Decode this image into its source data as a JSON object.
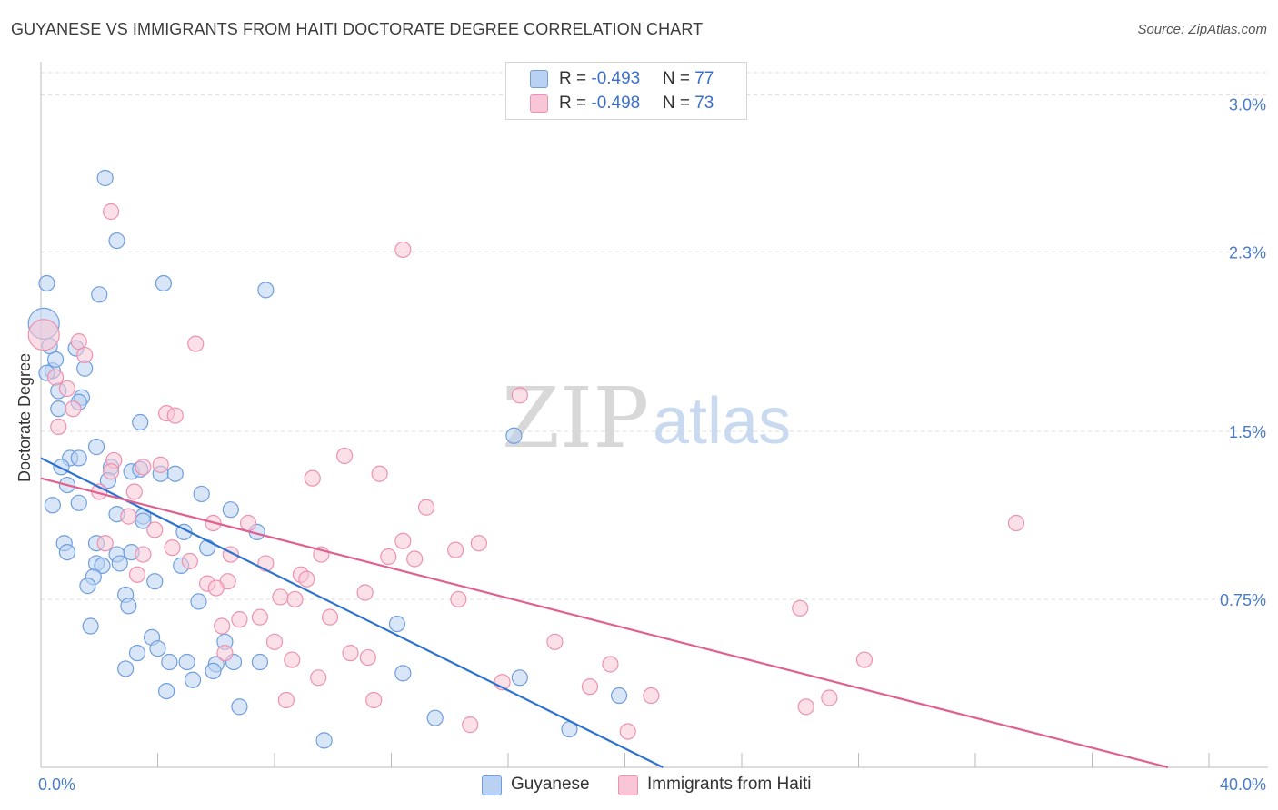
{
  "title": "GUYANESE VS IMMIGRANTS FROM HAITI DOCTORATE DEGREE CORRELATION CHART",
  "source": "Source: ZipAtlas.com",
  "watermark": {
    "zip": "ZIP",
    "atlas": "atlas"
  },
  "stats": [
    {
      "r_label": "R = ",
      "r_value": "-0.493",
      "n_label": "N = ",
      "n_value": "77"
    },
    {
      "r_label": "R = ",
      "r_value": "-0.498",
      "n_label": "N = ",
      "n_value": "73"
    }
  ],
  "legend": [
    "Guyanese",
    "Immigrants from Haiti"
  ],
  "colors": {
    "blue_fill": "#b9d2f3",
    "blue_stroke": "#6f9ede",
    "blue_line": "#2e73d0",
    "pink_fill": "#f8c6d6",
    "pink_stroke": "#ec92b0",
    "pink_line": "#e0608f",
    "tick_text": "#4a7cc9",
    "grid": "#dddddd"
  },
  "chart_data": {
    "type": "scatter",
    "title": "GUYANESE VS IMMIGRANTS FROM HAITI DOCTORATE DEGREE CORRELATION CHART",
    "xlabel": "",
    "ylabel": "Doctorate Degree",
    "xlim": [
      0,
      40
    ],
    "ylim": [
      0,
      3.1
    ],
    "x_tick_labels": [
      {
        "value": 0,
        "label": "0.0%"
      },
      {
        "value": 40,
        "label": "40.0%"
      }
    ],
    "y_ticks": [
      {
        "value": 0.75,
        "label": "0.75%"
      },
      {
        "value": 1.5,
        "label": "1.5%"
      },
      {
        "value": 2.3,
        "label": "2.3%"
      },
      {
        "value": 3.0,
        "label": "3.0%"
      }
    ],
    "grid": true,
    "series": [
      {
        "name": "Guyanese",
        "color": "blue",
        "r": -0.493,
        "n": 77,
        "trend": [
          [
            0,
            1.38
          ],
          [
            21.3,
            0.0
          ]
        ],
        "points": [
          [
            0.1,
            1.98,
            "large"
          ],
          [
            0.2,
            2.16
          ],
          [
            0.4,
            1.77
          ],
          [
            0.5,
            1.82
          ],
          [
            0.3,
            1.88
          ],
          [
            0.6,
            1.68
          ],
          [
            1.2,
            1.87
          ],
          [
            1.5,
            1.78
          ],
          [
            1.4,
            1.65
          ],
          [
            1.3,
            1.63
          ],
          [
            0.6,
            1.6
          ],
          [
            2.2,
            2.63
          ],
          [
            2.6,
            2.35
          ],
          [
            2.0,
            2.11
          ],
          [
            4.2,
            2.16
          ],
          [
            7.7,
            2.13
          ],
          [
            3.4,
            1.54
          ],
          [
            16.2,
            1.48
          ],
          [
            1.9,
            1.43
          ],
          [
            1.0,
            1.38
          ],
          [
            1.3,
            1.38
          ],
          [
            2.4,
            1.34
          ],
          [
            0.7,
            1.34
          ],
          [
            3.1,
            1.32
          ],
          [
            3.4,
            1.33
          ],
          [
            4.1,
            1.31
          ],
          [
            4.6,
            1.31
          ],
          [
            2.3,
            1.28
          ],
          [
            0.9,
            1.26
          ],
          [
            0.4,
            1.17
          ],
          [
            1.3,
            1.18
          ],
          [
            5.5,
            1.22
          ],
          [
            2.6,
            1.13
          ],
          [
            3.5,
            1.12
          ],
          [
            3.5,
            1.1
          ],
          [
            6.5,
            1.15
          ],
          [
            0.8,
            1.0
          ],
          [
            1.9,
            1.0
          ],
          [
            4.9,
            1.05
          ],
          [
            7.4,
            1.05
          ],
          [
            5.7,
            0.98
          ],
          [
            0.9,
            0.96
          ],
          [
            2.6,
            0.95
          ],
          [
            3.1,
            0.96
          ],
          [
            1.9,
            0.91
          ],
          [
            2.1,
            0.9
          ],
          [
            2.7,
            0.91
          ],
          [
            4.8,
            0.9
          ],
          [
            1.8,
            0.85
          ],
          [
            3.9,
            0.83
          ],
          [
            1.6,
            0.81
          ],
          [
            2.9,
            0.77
          ],
          [
            3.0,
            0.72
          ],
          [
            5.4,
            0.74
          ],
          [
            1.7,
            0.63
          ],
          [
            3.8,
            0.58
          ],
          [
            6.3,
            0.56
          ],
          [
            4.0,
            0.53
          ],
          [
            3.3,
            0.51
          ],
          [
            12.2,
            0.64
          ],
          [
            4.4,
            0.47
          ],
          [
            5.0,
            0.47
          ],
          [
            6.0,
            0.46
          ],
          [
            7.5,
            0.47
          ],
          [
            2.9,
            0.44
          ],
          [
            6.6,
            0.47
          ],
          [
            5.9,
            0.43
          ],
          [
            12.4,
            0.42
          ],
          [
            16.4,
            0.4
          ],
          [
            5.2,
            0.39
          ],
          [
            4.3,
            0.34
          ],
          [
            19.8,
            0.32
          ],
          [
            6.8,
            0.27
          ],
          [
            13.5,
            0.22
          ],
          [
            18.1,
            0.17
          ],
          [
            9.7,
            0.12
          ],
          [
            0.2,
            1.76
          ]
        ]
      },
      {
        "name": "Immigrants from Haiti",
        "color": "pink",
        "r": -0.498,
        "n": 73,
        "trend": [
          [
            0,
            1.29
          ],
          [
            38.6,
            0.0
          ]
        ],
        "points": [
          [
            0.1,
            1.93,
            "large"
          ],
          [
            2.4,
            2.48
          ],
          [
            12.4,
            2.31
          ],
          [
            1.3,
            1.9
          ],
          [
            5.3,
            1.89
          ],
          [
            1.5,
            1.84
          ],
          [
            0.5,
            1.74
          ],
          [
            0.9,
            1.69
          ],
          [
            16.4,
            1.66
          ],
          [
            1.1,
            1.6
          ],
          [
            4.3,
            1.58
          ],
          [
            4.6,
            1.57
          ],
          [
            0.6,
            1.52
          ],
          [
            10.4,
            1.39
          ],
          [
            2.5,
            1.37
          ],
          [
            4.1,
            1.35
          ],
          [
            3.5,
            1.34
          ],
          [
            2.4,
            1.32
          ],
          [
            11.6,
            1.31
          ],
          [
            9.3,
            1.29
          ],
          [
            2.0,
            1.23
          ],
          [
            3.2,
            1.23
          ],
          [
            13.2,
            1.16
          ],
          [
            3.0,
            1.12
          ],
          [
            5.9,
            1.09
          ],
          [
            7.1,
            1.09
          ],
          [
            3.9,
            1.06
          ],
          [
            33.4,
            1.09
          ],
          [
            2.2,
            1.0
          ],
          [
            12.4,
            1.01
          ],
          [
            15.0,
            1.0
          ],
          [
            4.5,
            0.98
          ],
          [
            14.2,
            0.97
          ],
          [
            3.5,
            0.95
          ],
          [
            6.5,
            0.95
          ],
          [
            9.6,
            0.95
          ],
          [
            11.9,
            0.94
          ],
          [
            12.8,
            0.93
          ],
          [
            5.1,
            0.92
          ],
          [
            7.7,
            0.91
          ],
          [
            3.3,
            0.86
          ],
          [
            8.9,
            0.86
          ],
          [
            9.1,
            0.84
          ],
          [
            5.7,
            0.82
          ],
          [
            6.4,
            0.83
          ],
          [
            6.0,
            0.8
          ],
          [
            11.1,
            0.78
          ],
          [
            8.2,
            0.76
          ],
          [
            14.3,
            0.75
          ],
          [
            8.7,
            0.75
          ],
          [
            26.0,
            0.71
          ],
          [
            7.5,
            0.67
          ],
          [
            6.8,
            0.66
          ],
          [
            9.9,
            0.67
          ],
          [
            6.2,
            0.63
          ],
          [
            8.0,
            0.56
          ],
          [
            17.6,
            0.56
          ],
          [
            10.6,
            0.51
          ],
          [
            6.3,
            0.51
          ],
          [
            11.2,
            0.49
          ],
          [
            8.6,
            0.48
          ],
          [
            28.2,
            0.48
          ],
          [
            19.5,
            0.46
          ],
          [
            9.5,
            0.4
          ],
          [
            15.8,
            0.38
          ],
          [
            18.8,
            0.36
          ],
          [
            20.9,
            0.32
          ],
          [
            8.4,
            0.3
          ],
          [
            11.4,
            0.3
          ],
          [
            27.0,
            0.31
          ],
          [
            26.2,
            0.27
          ],
          [
            14.7,
            0.19
          ],
          [
            20.1,
            0.16
          ]
        ]
      }
    ]
  }
}
